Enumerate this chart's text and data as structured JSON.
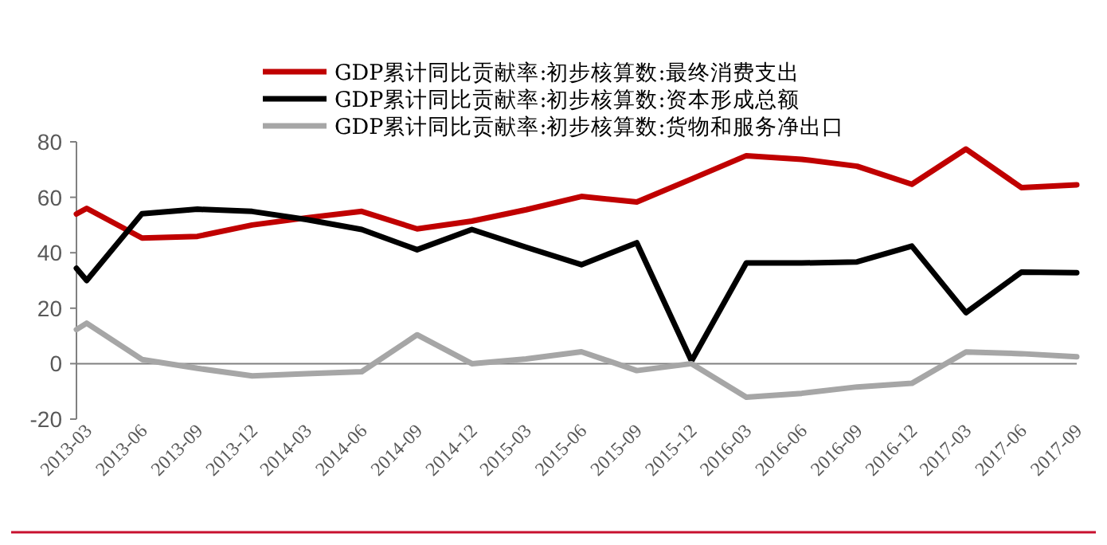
{
  "chart_data": {
    "type": "line",
    "x": [
      "2013-02-12",
      "2013-03",
      "2013-06",
      "2013-09",
      "2013-12",
      "2014-03",
      "2014-06",
      "2014-09",
      "2014-12",
      "2015-03",
      "2015-06",
      "2015-09",
      "2015-12",
      "2016-03",
      "2016-06",
      "2016-09",
      "2016-12",
      "2017-03",
      "2017-06",
      "2017-09"
    ],
    "series": [
      {
        "name": "GDP累计同比贡献率:初步核算数:最终消费支出",
        "color": "#c00000",
        "values": [
          54,
          56,
          45.3,
          45.9,
          50,
          52.6,
          54.9,
          48.6,
          51.4,
          55.5,
          60.3,
          58.3,
          66.6,
          75,
          73.7,
          71.2,
          64.7,
          77.4,
          63.5,
          64.5
        ]
      },
      {
        "name": "GDP累计同比贡献率:初步核算数:资本形成总额",
        "color": "#000000",
        "values": [
          34.4,
          30,
          54.1,
          55.7,
          54.9,
          52,
          48.4,
          41.1,
          48.4,
          42,
          35.7,
          43.6,
          1,
          36.3,
          36.3,
          36.7,
          42.4,
          18.4,
          33,
          32.8
        ]
      },
      {
        "name": "GDP累计同比贡献率:初步核算数:货物和服务净出口",
        "color": "#a6a6a6",
        "values": [
          12.3,
          14.6,
          1.5,
          -1.7,
          -4.4,
          -3.6,
          -2.9,
          10.4,
          0,
          1.7,
          4.3,
          -2.5,
          0,
          -12.1,
          -10.7,
          -8.4,
          -7.1,
          4.2,
          3.6,
          2.5
        ]
      }
    ],
    "xlim": [
      "2013-02-12",
      "2017-09"
    ],
    "xticks": [
      "2013-03",
      "2013-06",
      "2013-09",
      "2013-12",
      "2014-03",
      "2014-06",
      "2014-09",
      "2014-12",
      "2015-03",
      "2015-06",
      "2015-09",
      "2015-12",
      "2016-03",
      "2016-06",
      "2016-09",
      "2016-12",
      "2017-03",
      "2017-06",
      "2017-09"
    ],
    "ylim": [
      -20,
      80
    ],
    "yticks": [
      -20,
      0,
      20,
      40,
      60,
      80
    ],
    "legend": "top",
    "marker": "none",
    "line_style": "solid"
  }
}
